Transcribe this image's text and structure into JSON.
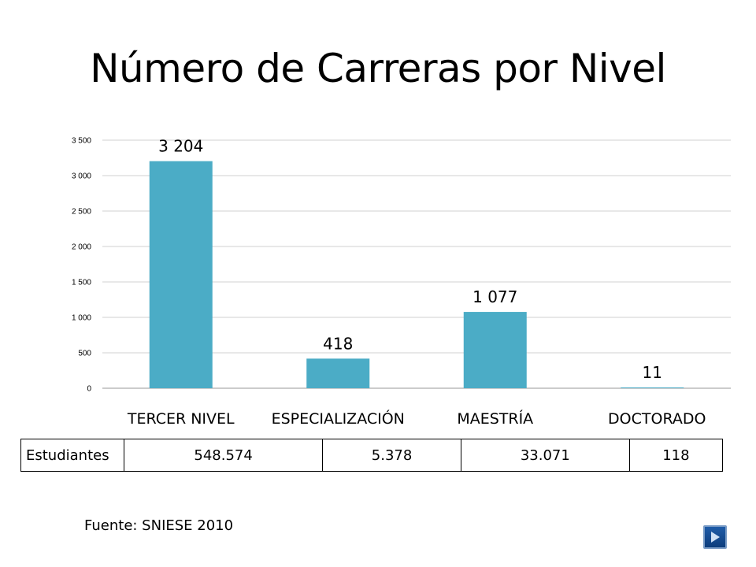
{
  "slide": {
    "title": "Número de Carreras por Nivel",
    "source_note": "Fuente: SNIESE 2010"
  },
  "chart_data": {
    "type": "bar",
    "categories": [
      "TERCER NIVEL",
      "ESPECIALIZACIÓN",
      "MAESTRÍA",
      "DOCTORADO"
    ],
    "values": [
      3204,
      418,
      1077,
      11
    ],
    "data_labels": [
      "3 204",
      "418",
      "1 077",
      "11"
    ],
    "y_ticks": [
      0,
      500,
      1000,
      1500,
      2000,
      2500,
      3000,
      3500
    ],
    "y_tick_labels": [
      "0",
      "500",
      "1 000",
      "1 500",
      "2 000",
      "2 500",
      "3 000",
      "3 500"
    ],
    "ylim": [
      0,
      3500
    ],
    "bar_color": "#4bacc6",
    "grid": true,
    "legend": "none"
  },
  "table": {
    "row_label": "Estudiantes",
    "values": [
      "548.574",
      "5.378",
      "33.071",
      "118"
    ]
  },
  "controls": {
    "next_icon": "next-slide-arrow-icon",
    "accent": "#1f5ca8"
  }
}
